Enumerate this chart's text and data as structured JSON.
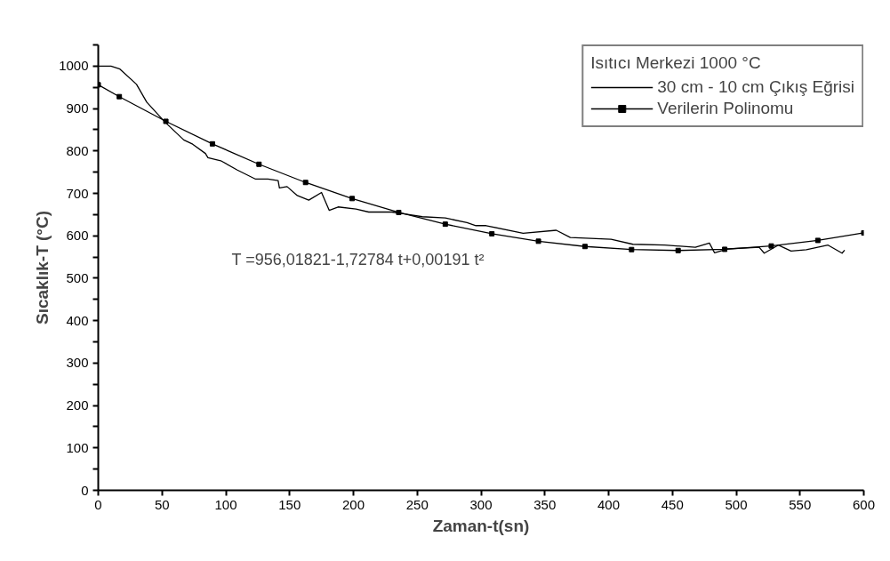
{
  "chart_data": {
    "type": "line",
    "xlabel": "Zaman-t(sn)",
    "ylabel": "Sıcaklık-T (°C)",
    "legend_title": "Isıtıcı Merkezi 1000 °C",
    "legend": "top right",
    "grid": false,
    "annotations": [
      "T =956,01821-1,72784 t+0,00191 t²"
    ],
    "xlim": [
      0,
      600
    ],
    "ylim": [
      0,
      1050
    ],
    "xticks": [
      0,
      50,
      100,
      150,
      200,
      250,
      300,
      350,
      400,
      450,
      500,
      550,
      600
    ],
    "yticks": [
      0,
      {
        "value": 50,
        "label": null
      },
      100,
      {
        "value": 150,
        "label": null
      },
      200,
      {
        "value": 250,
        "label": null
      },
      300,
      {
        "value": 350,
        "label": null
      },
      400,
      {
        "value": 450,
        "label": null
      },
      500,
      {
        "value": 550,
        "label": null
      },
      600,
      {
        "value": 650,
        "label": null
      },
      700,
      {
        "value": 750,
        "label": null
      },
      800,
      {
        "value": 850,
        "label": null
      },
      900,
      {
        "value": 950,
        "label": null
      },
      1000,
      {
        "value": 1050,
        "label": null
      }
    ],
    "series": [
      {
        "name": "30 cm - 10 cm Çıkış Eğrisi",
        "color": "#000000",
        "marker": "none",
        "x": [
          0,
          10,
          17,
          30,
          38,
          52,
          67,
          74,
          84,
          86,
          96,
          109,
          123,
          133,
          141,
          142,
          148,
          156,
          165,
          175,
          181,
          188,
          202,
          212,
          230,
          239,
          254,
          272,
          289,
          296,
          304,
          333,
          359,
          370,
          402,
          419,
          444,
          468,
          479,
          483,
          493,
          518,
          522,
          533,
          543,
          555,
          572,
          583,
          585
        ],
        "values": [
          1000,
          1000,
          993,
          957,
          915,
          869,
          826,
          816,
          794,
          784,
          777,
          755,
          734,
          734,
          730,
          713,
          716,
          695,
          684,
          702,
          660,
          668,
          663,
          656,
          656,
          652,
          645,
          642,
          631,
          624,
          624,
          606,
          613,
          596,
          592,
          580,
          578,
          573,
          583,
          560,
          569,
          573,
          559,
          578,
          564,
          567,
          578,
          559,
          566
        ]
      },
      {
        "name": "Verilerin Polinomu",
        "color": "#000000",
        "marker": "square",
        "x": [
          0,
          16.5,
          53,
          89.5,
          126,
          162.5,
          199,
          235.5,
          272,
          308.5,
          345,
          381.5,
          418,
          454.5,
          491,
          527.5,
          564,
          600
        ],
        "values": [
          956.0,
          928.0,
          869.8,
          816.7,
          768.6,
          725.7,
          687.8,
          655.0,
          627.4,
          604.8,
          587.2,
          574.8,
          567.5,
          565.3,
          568.1,
          576.0,
          589.1,
          606.9
        ]
      }
    ]
  }
}
